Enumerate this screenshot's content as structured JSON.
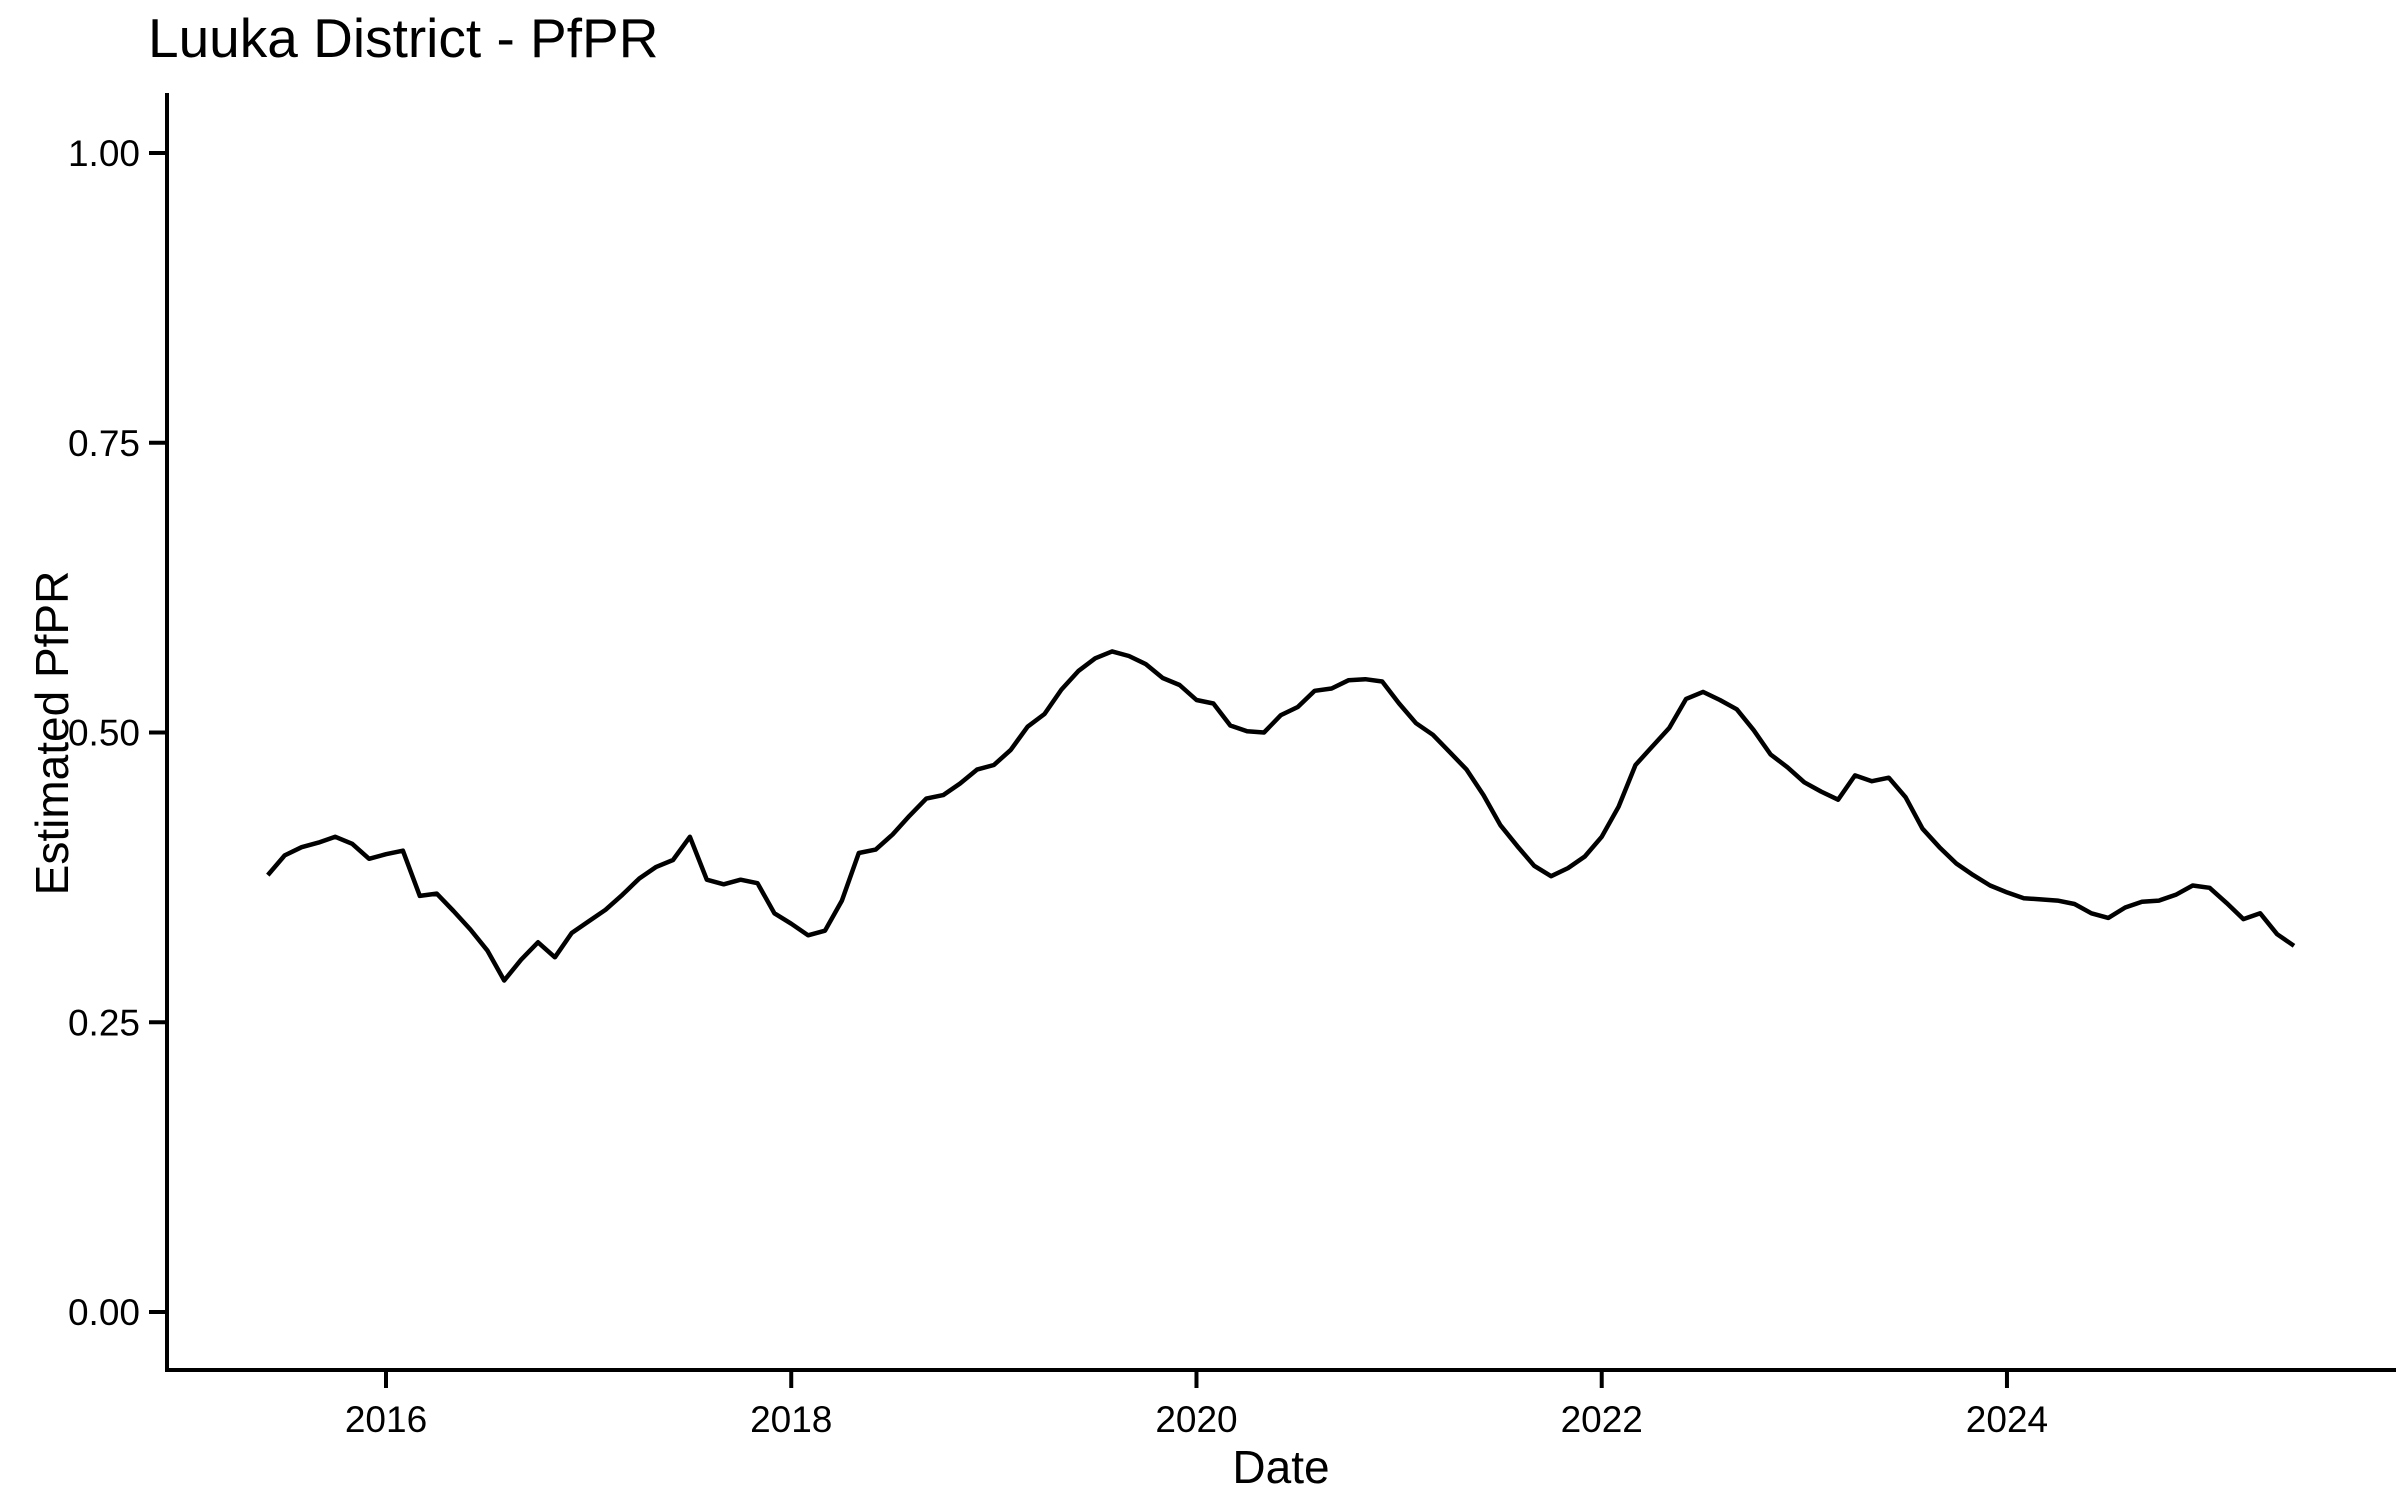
{
  "chart_data": {
    "type": "line",
    "title": "Luuka District - PfPR",
    "xlabel": "Date",
    "ylabel": "Estimated PfPR",
    "background_color": "#FFFFFF",
    "line_color": "#000000",
    "axis_color": "#000000",
    "grid": "off",
    "legend": "none",
    "ylim": [
      0.0,
      1.0
    ],
    "y_tick_values": [
      0.0,
      0.25,
      0.5,
      0.75,
      1.0
    ],
    "y_tick_labels": [
      "0.00",
      "0.25",
      "0.50",
      "0.75",
      "1.00"
    ],
    "x_tick_years": [
      2016,
      2018,
      2020,
      2022,
      2024
    ],
    "x_tick_labels": [
      "2016",
      "2018",
      "2020",
      "2022",
      "2024"
    ],
    "series": [
      {
        "name": "Estimated PfPR",
        "frequency": "monthly",
        "start": "2015-06",
        "end": "2025-06",
        "values": [
          0.377,
          0.394,
          0.401,
          0.405,
          0.41,
          0.404,
          0.391,
          0.395,
          0.398,
          0.359,
          0.361,
          0.346,
          0.33,
          0.312,
          0.286,
          0.304,
          0.319,
          0.306,
          0.327,
          0.337,
          0.347,
          0.36,
          0.374,
          0.384,
          0.39,
          0.41,
          0.373,
          0.369,
          0.373,
          0.37,
          0.344,
          0.335,
          0.325,
          0.329,
          0.355,
          0.396,
          0.399,
          0.412,
          0.428,
          0.443,
          0.446,
          0.456,
          0.468,
          0.472,
          0.485,
          0.505,
          0.516,
          0.537,
          0.553,
          0.564,
          0.57,
          0.566,
          0.559,
          0.547,
          0.541,
          0.528,
          0.525,
          0.506,
          0.501,
          0.5,
          0.515,
          0.522,
          0.536,
          0.538,
          0.545,
          0.546,
          0.544,
          0.525,
          0.508,
          0.498,
          0.483,
          0.468,
          0.446,
          0.42,
          0.402,
          0.385,
          0.376,
          0.383,
          0.393,
          0.41,
          0.436,
          0.472,
          0.488,
          0.504,
          0.529,
          0.535,
          0.528,
          0.52,
          0.502,
          0.481,
          0.47,
          0.457,
          0.449,
          0.442,
          0.463,
          0.458,
          0.461,
          0.444,
          0.417,
          0.401,
          0.387,
          0.377,
          0.368,
          0.362,
          0.357,
          0.356,
          0.355,
          0.352,
          0.344,
          0.34,
          0.349,
          0.354,
          0.355,
          0.36,
          0.368,
          0.366,
          0.353,
          0.339,
          0.344,
          0.326,
          0.316
        ]
      }
    ]
  }
}
